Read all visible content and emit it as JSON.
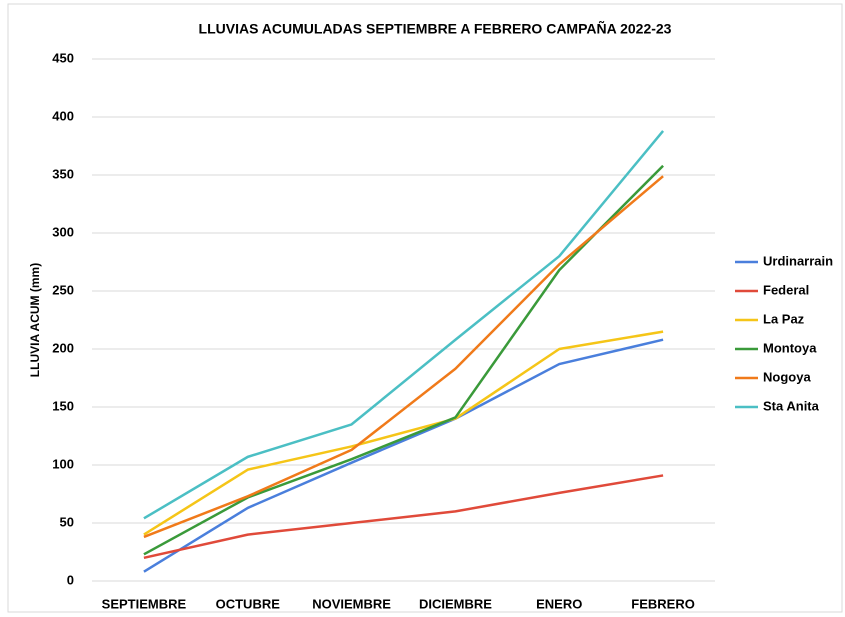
{
  "chart_data": {
    "type": "line",
    "title": "LLUVIAS ACUMULADAS SEPTIEMBRE A FEBRERO CAMPAÑA 2022-23",
    "y_label": "LLUVIA ACUM (mm)",
    "categories": [
      "SEPTIEMBRE",
      "OCTUBRE",
      "NOVIEMBRE",
      "DICIEMBRE",
      "ENERO",
      "FEBRERO"
    ],
    "series": [
      {
        "name": "Urdinarrain",
        "color": "#4a7fdc",
        "values": [
          8,
          63,
          102,
          140,
          187,
          208
        ]
      },
      {
        "name": "Federal",
        "color": "#e04a3a",
        "values": [
          20,
          40,
          50,
          60,
          76,
          91
        ]
      },
      {
        "name": "La Paz",
        "color": "#f5c518",
        "values": [
          40,
          96,
          116,
          140,
          200,
          215
        ]
      },
      {
        "name": "Montoya",
        "color": "#3a9a3a",
        "values": [
          23,
          72,
          105,
          141,
          268,
          358
        ]
      },
      {
        "name": "Nogoya",
        "color": "#f07a1a",
        "values": [
          38,
          73,
          113,
          183,
          273,
          349
        ]
      },
      {
        "name": "Sta Anita",
        "color": "#4bbfc4",
        "values": [
          54,
          107,
          135,
          208,
          280,
          388
        ]
      }
    ],
    "ylim": [
      0,
      450
    ],
    "yticks": [
      0,
      50,
      100,
      150,
      200,
      250,
      300,
      350,
      400,
      450
    ],
    "grid": true,
    "legend": "right"
  }
}
